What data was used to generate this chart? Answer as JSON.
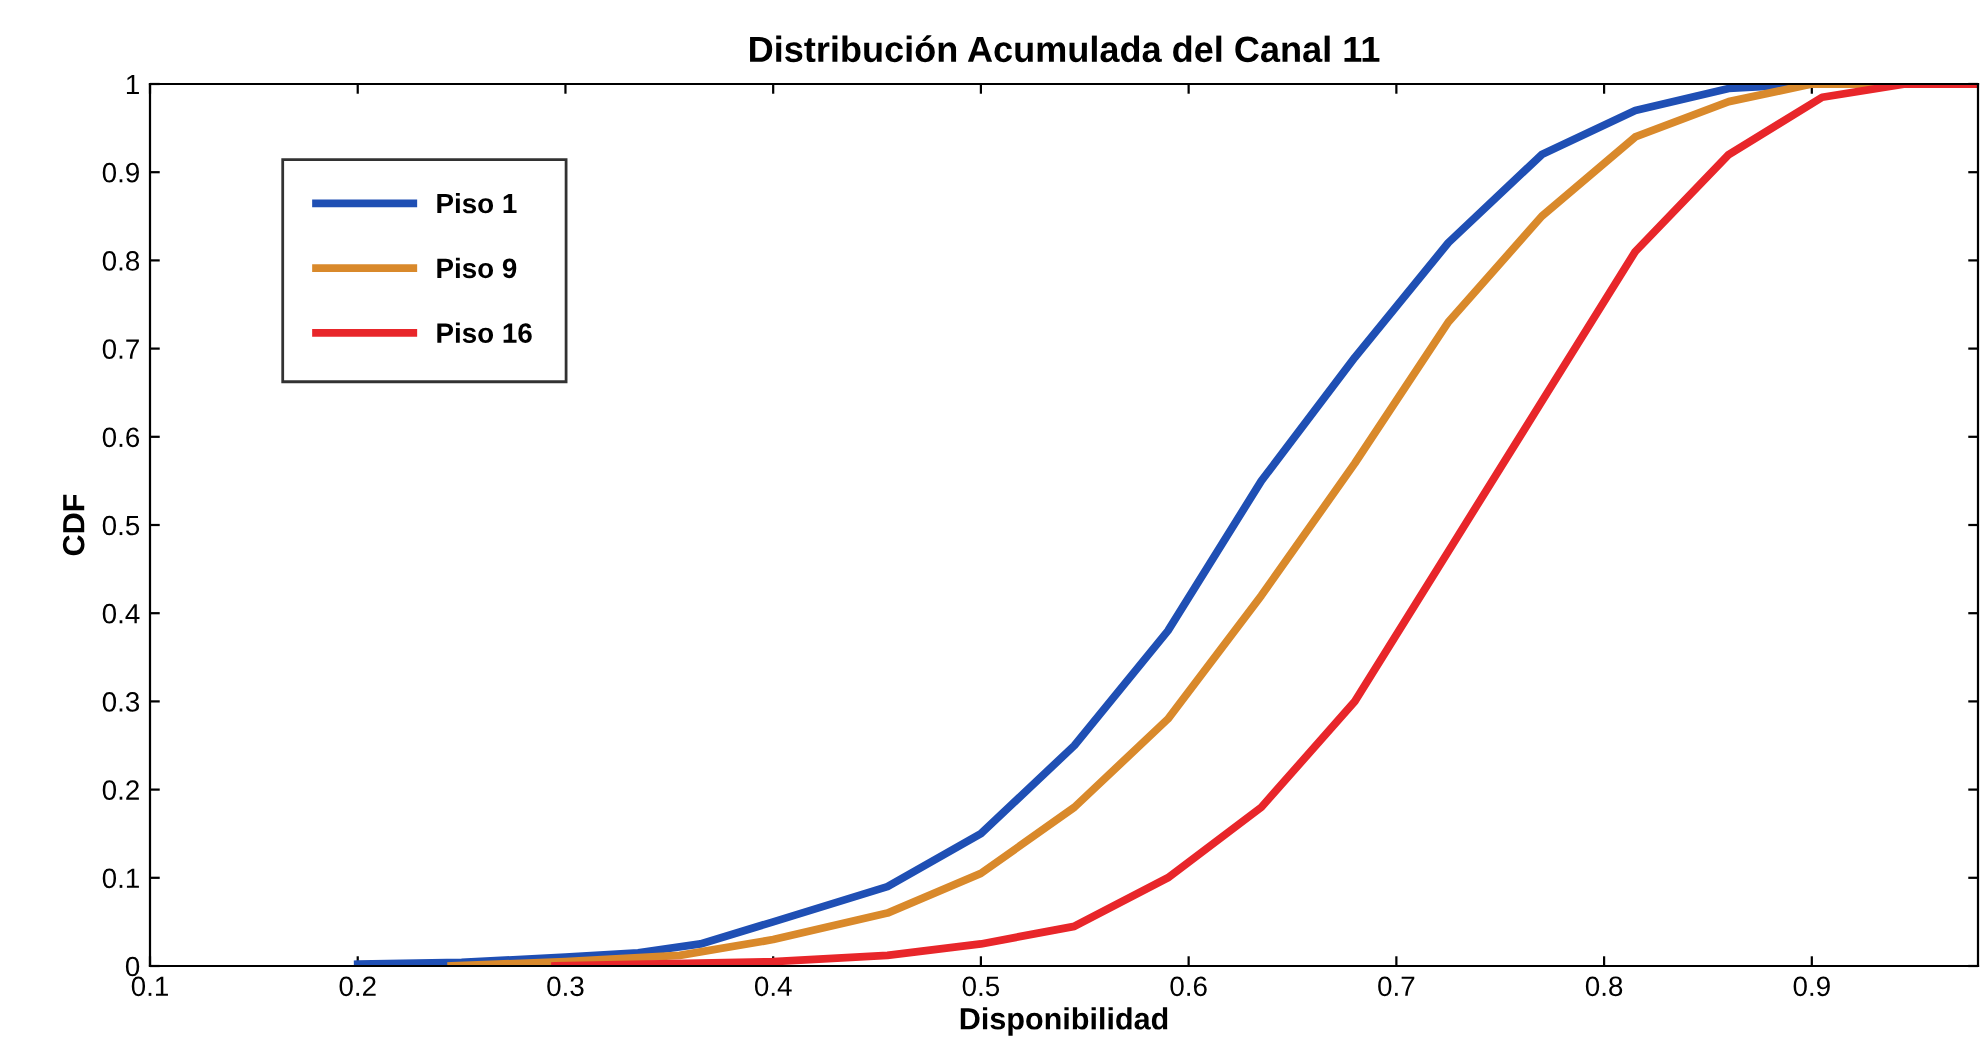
{
  "chart_data": {
    "type": "line",
    "title": "Distribución Acumulada del Canal 11",
    "xlabel": "Disponibilidad",
    "ylabel": "CDF",
    "xlim": [
      0.1,
      0.98
    ],
    "ylim": [
      0,
      1
    ],
    "xticks": [
      0.1,
      0.2,
      0.3,
      0.4,
      0.5,
      0.6,
      0.7,
      0.8,
      0.9
    ],
    "yticks": [
      0,
      0.1,
      0.2,
      0.3,
      0.4,
      0.5,
      0.6,
      0.7,
      0.8,
      0.9,
      1
    ],
    "grid": false,
    "legend": "top left",
    "marker": "none",
    "line_style": "solid",
    "series": [
      {
        "name": "Piso 1",
        "color": "#1f4fb4",
        "x": [
          0.2,
          0.25,
          0.3,
          0.335,
          0.365,
          0.4,
          0.455,
          0.5,
          0.545,
          0.59,
          0.635,
          0.68,
          0.725,
          0.77,
          0.815,
          0.86,
          0.9
        ],
        "values": [
          0.002,
          0.004,
          0.01,
          0.015,
          0.025,
          0.05,
          0.09,
          0.15,
          0.25,
          0.38,
          0.55,
          0.69,
          0.82,
          0.92,
          0.97,
          0.995,
          1
        ]
      },
      {
        "name": "Piso 9",
        "color": "#d9892b",
        "x": [
          0.245,
          0.3,
          0.355,
          0.4,
          0.455,
          0.5,
          0.545,
          0.59,
          0.635,
          0.68,
          0.725,
          0.77,
          0.815,
          0.86,
          0.9,
          0.98
        ],
        "values": [
          0,
          0.005,
          0.012,
          0.03,
          0.06,
          0.105,
          0.18,
          0.28,
          0.42,
          0.57,
          0.73,
          0.85,
          0.94,
          0.98,
          1,
          1
        ]
      },
      {
        "name": "Piso 16",
        "color": "#e8262a",
        "x": [
          0.295,
          0.4,
          0.455,
          0.5,
          0.545,
          0.59,
          0.635,
          0.68,
          0.725,
          0.77,
          0.815,
          0.86,
          0.905,
          0.945,
          0.98
        ],
        "values": [
          0,
          0.005,
          0.012,
          0.025,
          0.045,
          0.1,
          0.18,
          0.3,
          0.47,
          0.64,
          0.81,
          0.92,
          0.985,
          1,
          1
        ]
      }
    ]
  }
}
